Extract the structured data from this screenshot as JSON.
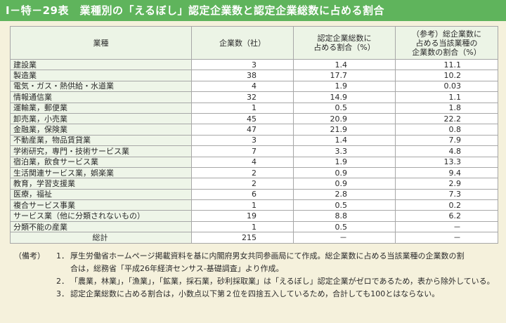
{
  "title": "Ⅰ－特－29表　業種別の「えるぼし」認定企業数と認定企業総数に占める割合",
  "table": {
    "headers": {
      "industry": "業種",
      "count": "企業数（社）",
      "share": [
        "認定企業総数に",
        "占める割合（%）"
      ],
      "ref": [
        "（参考）総企業数に",
        "占める当該業種の",
        "企業数の割合（%）"
      ]
    },
    "rows": [
      {
        "industry": "建設業",
        "count": "3",
        "share": "1.4",
        "ref": "11.1"
      },
      {
        "industry": "製造業",
        "count": "38",
        "share": "17.7",
        "ref": "10.2"
      },
      {
        "industry": "電気・ガス・熱供給・水道業",
        "count": "4",
        "share": "1.9",
        "ref": "0.03"
      },
      {
        "industry": "情報通信業",
        "count": "32",
        "share": "14.9",
        "ref": "1.1"
      },
      {
        "industry": "運輸業，郵便業",
        "count": "1",
        "share": "0.5",
        "ref": "1.8"
      },
      {
        "industry": "卸売業，小売業",
        "count": "45",
        "share": "20.9",
        "ref": "22.2"
      },
      {
        "industry": "金融業，保険業",
        "count": "47",
        "share": "21.9",
        "ref": "0.8"
      },
      {
        "industry": "不動産業，物品賃貸業",
        "count": "3",
        "share": "1.4",
        "ref": "7.9"
      },
      {
        "industry": "学術研究，専門・技術サービス業",
        "count": "7",
        "share": "3.3",
        "ref": "4.8"
      },
      {
        "industry": "宿泊業，飲食サービス業",
        "count": "4",
        "share": "1.9",
        "ref": "13.3"
      },
      {
        "industry": "生活関連サービス業，娯楽業",
        "count": "2",
        "share": "0.9",
        "ref": "9.4"
      },
      {
        "industry": "教育，学習支援業",
        "count": "2",
        "share": "0.9",
        "ref": "2.9"
      },
      {
        "industry": "医療，福祉",
        "count": "6",
        "share": "2.8",
        "ref": "7.3"
      },
      {
        "industry": "複合サービス事業",
        "count": "1",
        "share": "0.5",
        "ref": "0.2"
      },
      {
        "industry": "サービス業（他に分類されないもの）",
        "count": "19",
        "share": "8.8",
        "ref": "6.2"
      },
      {
        "industry": "分類不能の産業",
        "count": "1",
        "share": "0.5",
        "ref": "－"
      }
    ],
    "total": {
      "industry": "総計",
      "count": "215",
      "share": "－",
      "ref": "－"
    }
  },
  "notes": {
    "label": "（備考）",
    "items": [
      {
        "num": "1．",
        "lines": [
          "厚生労働省ホームページ掲載資料を基に内閣府男女共同参画局にて作成。総企業数に占める当該業種の企業数の割",
          "合は，総務省「平成26年経済センサス-基礎調査」より作成。"
        ]
      },
      {
        "num": "2．",
        "lines": [
          "「農業，林業」，「漁業」，「鉱業，採石業，砂利採取業」は「えるぼし」認定企業がゼロであるため，表から除外している。"
        ]
      },
      {
        "num": "3．",
        "lines": [
          "認定企業総数に占める割合は，小数点以下第２位を四捨五入しているため，合計しても100とはならない。"
        ]
      }
    ]
  }
}
